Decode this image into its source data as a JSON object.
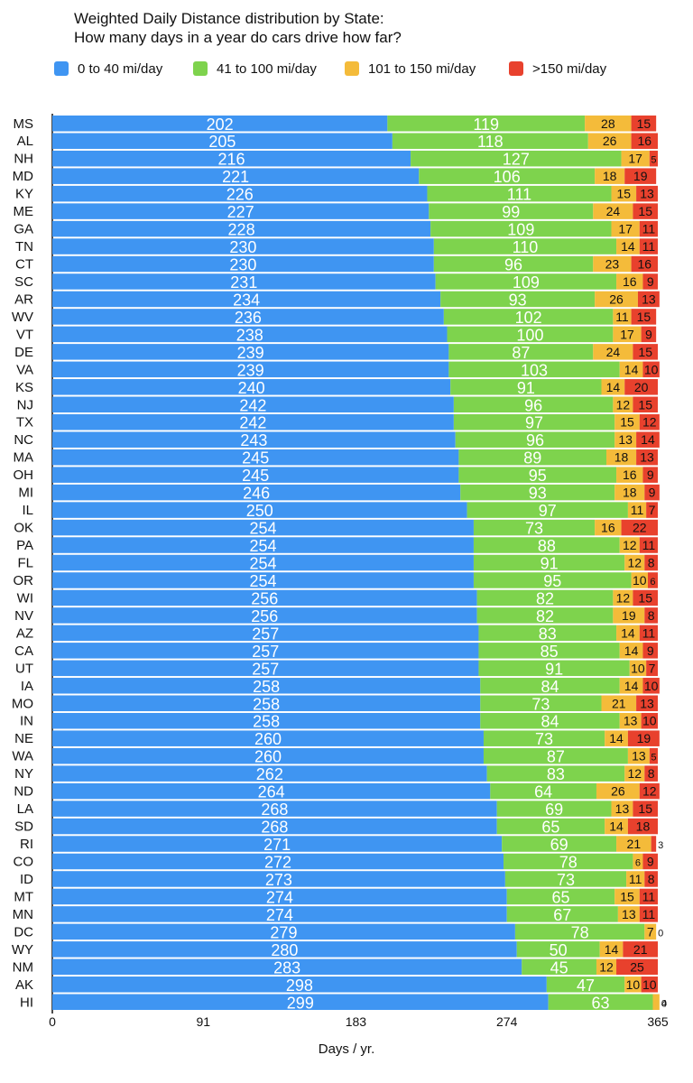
{
  "chart_data": {
    "type": "bar",
    "orientation": "horizontal",
    "stacked": true,
    "title": [
      "Weighted Daily Distance distribution by State:",
      "How many days in a year do cars drive how far?"
    ],
    "xlabel": "Days / yr.",
    "ylabel": "",
    "xlim": [
      0,
      365
    ],
    "xticks": [
      "0",
      "91",
      "183",
      "274",
      "365"
    ],
    "xtick_values": [
      0,
      91,
      183,
      274,
      365
    ],
    "legend_position": "top",
    "grid": false,
    "categories": [
      "MS",
      "AL",
      "NH",
      "MD",
      "KY",
      "ME",
      "GA",
      "TN",
      "CT",
      "SC",
      "AR",
      "WV",
      "VT",
      "DE",
      "VA",
      "KS",
      "NJ",
      "TX",
      "NC",
      "MA",
      "OH",
      "MI",
      "IL",
      "OK",
      "PA",
      "FL",
      "OR",
      "WI",
      "NV",
      "AZ",
      "CA",
      "UT",
      "IA",
      "MO",
      "IN",
      "NE",
      "WA",
      "NY",
      "ND",
      "LA",
      "SD",
      "RI",
      "CO",
      "ID",
      "MT",
      "MN",
      "DC",
      "WY",
      "NM",
      "AK",
      "HI"
    ],
    "series": [
      {
        "name": "0 to 40 mi/day",
        "color": "#3f95f2",
        "values": [
          202,
          205,
          216,
          221,
          226,
          227,
          228,
          230,
          230,
          231,
          234,
          236,
          238,
          239,
          239,
          240,
          242,
          242,
          243,
          245,
          245,
          246,
          250,
          254,
          254,
          254,
          254,
          256,
          256,
          257,
          257,
          257,
          258,
          258,
          258,
          260,
          260,
          262,
          264,
          268,
          268,
          271,
          272,
          273,
          274,
          274,
          279,
          280,
          283,
          298,
          299
        ]
      },
      {
        "name": "41 to 100 mi/day",
        "color": "#7ed34d",
        "values": [
          119,
          118,
          127,
          106,
          111,
          99,
          109,
          110,
          96,
          109,
          93,
          102,
          100,
          87,
          103,
          91,
          96,
          97,
          96,
          89,
          95,
          93,
          97,
          73,
          88,
          91,
          95,
          82,
          82,
          83,
          85,
          91,
          84,
          73,
          84,
          73,
          87,
          83,
          64,
          69,
          65,
          69,
          78,
          73,
          65,
          67,
          78,
          50,
          45,
          47,
          63
        ]
      },
      {
        "name": "101 to 150 mi/day",
        "color": "#f4bb3a",
        "values": [
          28,
          26,
          17,
          18,
          15,
          24,
          17,
          14,
          23,
          16,
          26,
          11,
          17,
          24,
          14,
          14,
          12,
          15,
          13,
          18,
          16,
          18,
          11,
          16,
          12,
          12,
          10,
          12,
          19,
          14,
          14,
          10,
          14,
          21,
          13,
          14,
          13,
          12,
          26,
          13,
          14,
          21,
          6,
          11,
          15,
          13,
          7,
          14,
          12,
          10,
          4
        ]
      },
      {
        "name": ">150 mi/day",
        "color": "#e8412d",
        "values": [
          15,
          16,
          5,
          19,
          13,
          15,
          11,
          11,
          16,
          9,
          13,
          15,
          9,
          15,
          10,
          20,
          15,
          12,
          14,
          13,
          9,
          9,
          7,
          22,
          11,
          8,
          6,
          15,
          8,
          11,
          9,
          7,
          10,
          13,
          10,
          19,
          5,
          8,
          12,
          15,
          18,
          3,
          9,
          8,
          11,
          11,
          0,
          21,
          25,
          10,
          0
        ]
      }
    ]
  }
}
